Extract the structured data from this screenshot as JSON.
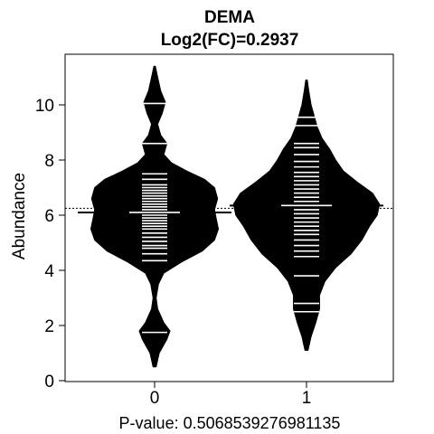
{
  "chart_data": {
    "type": "beanplot",
    "title": "DEMA",
    "subtitle": "Log2(FC)=0.2937",
    "ylabel": "Abundance",
    "xlabel": "P-value: 0.5068539276981135",
    "categories": [
      "0",
      "1"
    ],
    "y_ticks": [
      "0",
      "2",
      "4",
      "6",
      "8",
      "10"
    ],
    "ylim": [
      0,
      11.5
    ],
    "overall_mean": 6.25,
    "grid": false,
    "legend": "none",
    "series": [
      {
        "group": "0",
        "mean": 6.1,
        "points": [
          1.75,
          4.35,
          4.6,
          4.8,
          4.9,
          5.05,
          5.2,
          5.35,
          5.5,
          5.6,
          5.7,
          5.8,
          5.9,
          6.0,
          6.1,
          6.2,
          6.3,
          6.4,
          6.5,
          6.6,
          6.7,
          6.8,
          6.9,
          7.0,
          7.1,
          7.3,
          7.5,
          8.6,
          10.05
        ],
        "density": [
          [
            0.5,
            0.02
          ],
          [
            1.0,
            0.06
          ],
          [
            1.5,
            0.16
          ],
          [
            1.8,
            0.2
          ],
          [
            2.1,
            0.12
          ],
          [
            2.6,
            0.04
          ],
          [
            3.0,
            0.02
          ],
          [
            3.5,
            0.05
          ],
          [
            3.9,
            0.12
          ],
          [
            4.3,
            0.35
          ],
          [
            4.7,
            0.62
          ],
          [
            5.1,
            0.78
          ],
          [
            5.5,
            0.83
          ],
          [
            5.9,
            0.8
          ],
          [
            6.2,
            0.78
          ],
          [
            6.6,
            0.82
          ],
          [
            7.0,
            0.78
          ],
          [
            7.3,
            0.65
          ],
          [
            7.6,
            0.42
          ],
          [
            7.9,
            0.22
          ],
          [
            8.2,
            0.12
          ],
          [
            8.6,
            0.16
          ],
          [
            8.9,
            0.08
          ],
          [
            9.3,
            0.04
          ],
          [
            9.7,
            0.1
          ],
          [
            10.1,
            0.14
          ],
          [
            10.5,
            0.08
          ],
          [
            11.0,
            0.04
          ],
          [
            11.4,
            0.01
          ]
        ]
      },
      {
        "group": "1",
        "mean": 6.35,
        "points": [
          2.5,
          2.8,
          3.8,
          4.5,
          4.7,
          4.9,
          5.1,
          5.3,
          5.45,
          5.6,
          5.75,
          5.9,
          6.05,
          6.2,
          6.35,
          6.5,
          6.65,
          6.8,
          6.95,
          7.1,
          7.25,
          7.4,
          7.55,
          7.75,
          7.95,
          8.2,
          8.45,
          8.6,
          9.25,
          9.55
        ],
        "density": [
          [
            1.1,
            0.02
          ],
          [
            1.6,
            0.06
          ],
          [
            2.1,
            0.12
          ],
          [
            2.6,
            0.17
          ],
          [
            3.1,
            0.17
          ],
          [
            3.6,
            0.24
          ],
          [
            4.1,
            0.38
          ],
          [
            4.6,
            0.58
          ],
          [
            5.1,
            0.72
          ],
          [
            5.6,
            0.82
          ],
          [
            6.0,
            0.92
          ],
          [
            6.4,
            0.95
          ],
          [
            6.8,
            0.86
          ],
          [
            7.2,
            0.66
          ],
          [
            7.6,
            0.48
          ],
          [
            8.0,
            0.38
          ],
          [
            8.4,
            0.3
          ],
          [
            8.8,
            0.2
          ],
          [
            9.2,
            0.14
          ],
          [
            9.6,
            0.1
          ],
          [
            10.0,
            0.06
          ],
          [
            10.5,
            0.03
          ],
          [
            10.9,
            0.01
          ]
        ]
      }
    ]
  }
}
